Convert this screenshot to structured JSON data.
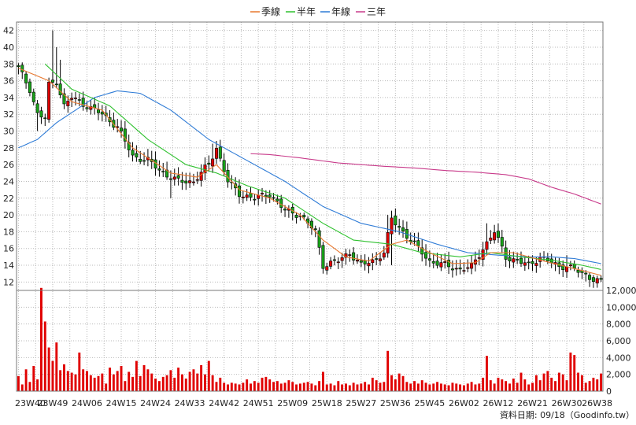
{
  "chart_data": {
    "type": "candlestick-with-volume",
    "legend": [
      {
        "name": "季線",
        "color": "#E8782F"
      },
      {
        "name": "半年",
        "color": "#2FC12F"
      },
      {
        "name": "年線",
        "color": "#2E7BD6"
      },
      {
        "name": "三年",
        "color": "#C83A8A"
      }
    ],
    "price_axis": {
      "ylim": [
        11,
        43
      ],
      "ticks": [
        12,
        14,
        16,
        18,
        20,
        22,
        24,
        26,
        28,
        30,
        32,
        34,
        36,
        38,
        40,
        42
      ]
    },
    "volume_axis": {
      "ylim": [
        0,
        12000
      ],
      "ticks": [
        "0",
        "2,000",
        "4,000",
        "6,000",
        "8,000",
        "10,000",
        "12,000"
      ],
      "tick_values": [
        0,
        2000,
        4000,
        6000,
        8000,
        10000,
        12000
      ]
    },
    "x_tick_labels": [
      "23W40",
      "23W49",
      "24W06",
      "24W15",
      "24W24",
      "24W33",
      "24W42",
      "24W51",
      "25W09",
      "25W18",
      "25W27",
      "25W36",
      "25W45",
      "26W02",
      "26W12",
      "26W21",
      "26W30",
      "26W38"
    ],
    "week_count": 154,
    "close_anchors": [
      [
        0,
        37.5
      ],
      [
        3,
        35
      ],
      [
        5,
        32
      ],
      [
        7,
        31.5
      ],
      [
        8,
        35.5
      ],
      [
        10,
        36
      ],
      [
        12,
        33
      ],
      [
        14,
        34
      ],
      [
        18,
        33
      ],
      [
        22,
        32
      ],
      [
        26,
        30.5
      ],
      [
        30,
        27
      ],
      [
        34,
        26.5
      ],
      [
        38,
        25
      ],
      [
        42,
        24
      ],
      [
        46,
        24
      ],
      [
        50,
        26
      ],
      [
        52,
        28
      ],
      [
        55,
        24
      ],
      [
        58,
        22.5
      ],
      [
        62,
        22
      ],
      [
        66,
        22.5
      ],
      [
        70,
        20.5
      ],
      [
        74,
        20
      ],
      [
        78,
        18
      ],
      [
        80,
        14
      ],
      [
        84,
        14.5
      ],
      [
        87,
        15.5
      ],
      [
        90,
        14
      ],
      [
        93,
        14.5
      ],
      [
        96,
        15.5
      ],
      [
        98,
        19.5
      ],
      [
        102,
        17.5
      ],
      [
        105,
        16
      ],
      [
        108,
        14.5
      ],
      [
        112,
        14
      ],
      [
        116,
        13.5
      ],
      [
        119,
        13.8
      ],
      [
        122,
        16
      ],
      [
        125,
        18
      ],
      [
        128,
        15
      ],
      [
        131,
        14.5
      ],
      [
        134,
        14
      ],
      [
        137,
        15
      ],
      [
        140,
        14.3
      ],
      [
        142,
        13.8
      ],
      [
        144,
        14
      ],
      [
        146,
        13.5
      ],
      [
        148,
        13
      ],
      [
        150,
        12.6
      ],
      [
        153,
        12
      ]
    ],
    "high_spikes": [
      [
        9,
        42
      ],
      [
        10,
        40
      ],
      [
        11,
        38.5
      ],
      [
        51,
        28.5
      ],
      [
        97,
        20
      ],
      [
        123,
        19
      ],
      [
        137,
        15.5
      ],
      [
        144,
        15.2
      ]
    ],
    "low_spikes": [
      [
        5,
        30
      ],
      [
        8,
        31
      ],
      [
        40,
        22
      ],
      [
        80,
        13
      ],
      [
        98,
        14
      ]
    ],
    "ma_quarter_anchors": [
      [
        0,
        37.5
      ],
      [
        8,
        36
      ],
      [
        14,
        33.5
      ],
      [
        22,
        32.5
      ],
      [
        30,
        28
      ],
      [
        40,
        25
      ],
      [
        47,
        24.5
      ],
      [
        52,
        26
      ],
      [
        58,
        23
      ],
      [
        66,
        22
      ],
      [
        74,
        20
      ],
      [
        80,
        17
      ],
      [
        86,
        15
      ],
      [
        92,
        14.5
      ],
      [
        98,
        16.5
      ],
      [
        102,
        17
      ],
      [
        108,
        15.5
      ],
      [
        114,
        14.2
      ],
      [
        120,
        14.3
      ],
      [
        124,
        15.5
      ],
      [
        130,
        15.5
      ],
      [
        138,
        14.5
      ],
      [
        146,
        13.6
      ],
      [
        153,
        12.8
      ]
    ],
    "ma_half_anchors": [
      [
        7,
        38
      ],
      [
        14,
        35
      ],
      [
        24,
        33
      ],
      [
        34,
        29
      ],
      [
        44,
        26
      ],
      [
        52,
        25
      ],
      [
        60,
        23.5
      ],
      [
        70,
        22
      ],
      [
        80,
        19
      ],
      [
        88,
        17
      ],
      [
        98,
        16.5
      ],
      [
        106,
        15.5
      ],
      [
        116,
        15
      ],
      [
        124,
        15.5
      ],
      [
        132,
        15
      ],
      [
        140,
        14.6
      ],
      [
        148,
        14
      ],
      [
        153,
        13.5
      ]
    ],
    "ma_year_anchors": [
      [
        0,
        28
      ],
      [
        5,
        29
      ],
      [
        10,
        31
      ],
      [
        20,
        34
      ],
      [
        26,
        34.8
      ],
      [
        32,
        34.5
      ],
      [
        40,
        32.5
      ],
      [
        50,
        29
      ],
      [
        60,
        26.5
      ],
      [
        70,
        24
      ],
      [
        80,
        21
      ],
      [
        90,
        19
      ],
      [
        100,
        18
      ],
      [
        110,
        16.5
      ],
      [
        118,
        15.5
      ],
      [
        126,
        15.2
      ],
      [
        134,
        15
      ],
      [
        140,
        15
      ],
      [
        146,
        14.8
      ],
      [
        153,
        14.2
      ]
    ],
    "ma_three_year_anchors": [
      [
        61,
        27.3
      ],
      [
        66,
        27.2
      ],
      [
        74,
        26.8
      ],
      [
        84,
        26.2
      ],
      [
        96,
        25.8
      ],
      [
        104,
        25.6
      ],
      [
        112,
        25.3
      ],
      [
        120,
        25.1
      ],
      [
        128,
        24.8
      ],
      [
        134,
        24.3
      ],
      [
        140,
        23.3
      ],
      [
        146,
        22.5
      ],
      [
        153,
        21.3
      ]
    ],
    "volume_bars": [
      1.8,
      0.8,
      2.6,
      1.1,
      3.0,
      1.4,
      12.3,
      8.3,
      5.2,
      3.6,
      5.8,
      2.5,
      3.2,
      2.4,
      2.2,
      2.0,
      4.6,
      2.6,
      2.4,
      1.9,
      1.6,
      1.8,
      2.1,
      0.9,
      2.8,
      2.0,
      2.4,
      3.0,
      1.2,
      2.3,
      1.7,
      3.6,
      1.8,
      3.1,
      2.6,
      2.1,
      1.5,
      1.2,
      1.7,
      1.9,
      2.5,
      1.6,
      2.8,
      2.0,
      1.5,
      2.3,
      2.6,
      2.1,
      3.1,
      2.0,
      3.6,
      1.9,
      1.1,
      1.6,
      1.0,
      0.8,
      1.0,
      0.9,
      0.8,
      1.0,
      1.4,
      0.9,
      1.2,
      1.0,
      1.6,
      1.7,
      1.4,
      1.1,
      1.2,
      0.9,
      1.0,
      1.3,
      1.1,
      0.8,
      0.9,
      1.0,
      1.1,
      0.9,
      0.7,
      1.2,
      2.3,
      0.8,
      0.9,
      0.7,
      1.2,
      0.8,
      0.9,
      0.7,
      1.0,
      0.8,
      0.9,
      1.1,
      0.8,
      1.6,
      1.3,
      1.0,
      1.1,
      4.8,
      1.9,
      1.4,
      2.1,
      1.8,
      1.1,
      0.9,
      1.2,
      0.9,
      1.3,
      1.0,
      0.8,
      0.9,
      1.1,
      0.9,
      0.8,
      0.7,
      1.0,
      0.9,
      0.8,
      0.7,
      0.9,
      1.1,
      0.8,
      0.9,
      1.6,
      4.2,
      1.3,
      0.9,
      1.6,
      1.4,
      1.2,
      0.9,
      1.5,
      1.0,
      2.2,
      1.4,
      0.8,
      1.0,
      1.9,
      1.3,
      2.1,
      2.4,
      1.6,
      1.2,
      2.2,
      2.0,
      1.3,
      4.6,
      4.3,
      2.2,
      1.9,
      1.0,
      1.2,
      1.6,
      1.4,
      2.1
    ],
    "footer_text": "資料日期: 09/18（Goodinfo.tw）"
  }
}
